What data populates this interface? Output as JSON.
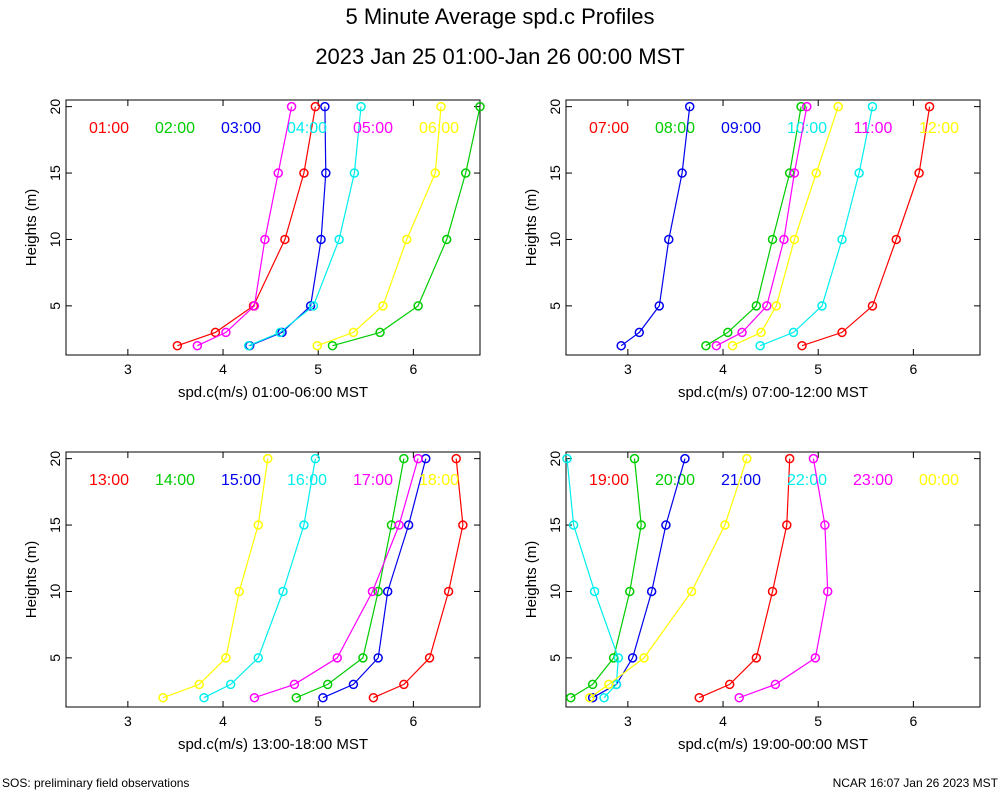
{
  "chart_data": {
    "type": "line",
    "title": "5 Minute Average spd.c Profiles",
    "subtitle": "2023 Jan 25 01:00-Jan 26 00:00 MST",
    "footer_left": "SOS: preliminary field observations",
    "footer_right": "NCAR 16:07 Jan 26 2023 MST",
    "ylabel": "Heights (m)",
    "heights": [
      2,
      3,
      5,
      10,
      15,
      20
    ],
    "xlim": [
      2.35,
      6.7
    ],
    "ylim": [
      1.3,
      20.5
    ],
    "xticks": [
      3,
      4,
      5,
      6
    ],
    "yticks": [
      5,
      10,
      15,
      20
    ],
    "panels": [
      {
        "xlabel": "spd.c(m/s) 01:00-06:00 MST",
        "series": [
          {
            "name": "01:00",
            "color": "#ff0000",
            "values": [
              3.52,
              3.92,
              4.32,
              4.65,
              4.85,
              4.97
            ]
          },
          {
            "name": "02:00",
            "color": "#00cc00",
            "values": [
              5.15,
              5.65,
              6.05,
              6.35,
              6.55,
              6.7
            ]
          },
          {
            "name": "03:00",
            "color": "#0000ee",
            "values": [
              4.28,
              4.62,
              4.92,
              5.03,
              5.08,
              5.07
            ]
          },
          {
            "name": "04:00",
            "color": "#00eeee",
            "values": [
              4.27,
              4.6,
              4.95,
              5.22,
              5.38,
              5.45
            ]
          },
          {
            "name": "05:00",
            "color": "#ff00ff",
            "values": [
              3.73,
              4.03,
              4.33,
              4.44,
              4.58,
              4.72
            ]
          },
          {
            "name": "06:00",
            "color": "#ffff00",
            "values": [
              4.99,
              5.37,
              5.68,
              5.93,
              6.23,
              6.29
            ]
          }
        ]
      },
      {
        "xlabel": "spd.c(m/s) 07:00-12:00 MST",
        "series": [
          {
            "name": "07:00",
            "color": "#ff0000",
            "values": [
              4.83,
              5.25,
              5.57,
              5.82,
              6.06,
              6.17
            ]
          },
          {
            "name": "08:00",
            "color": "#00cc00",
            "values": [
              3.82,
              4.05,
              4.35,
              4.52,
              4.7,
              4.82
            ]
          },
          {
            "name": "09:00",
            "color": "#0000ee",
            "values": [
              2.93,
              3.12,
              3.33,
              3.43,
              3.57,
              3.65
            ]
          },
          {
            "name": "10:00",
            "color": "#00eeee",
            "values": [
              4.39,
              4.74,
              5.04,
              5.25,
              5.43,
              5.57
            ]
          },
          {
            "name": "11:00",
            "color": "#ff00ff",
            "values": [
              3.93,
              4.2,
              4.46,
              4.64,
              4.75,
              4.88
            ]
          },
          {
            "name": "12:00",
            "color": "#ffff00",
            "values": [
              4.1,
              4.4,
              4.56,
              4.75,
              4.98,
              5.21
            ]
          }
        ]
      },
      {
        "xlabel": "spd.c(m/s) 13:00-18:00 MST",
        "series": [
          {
            "name": "13:00",
            "color": "#ff0000",
            "values": [
              5.58,
              5.9,
              6.17,
              6.37,
              6.52,
              6.45
            ]
          },
          {
            "name": "14:00",
            "color": "#00cc00",
            "values": [
              4.77,
              5.1,
              5.47,
              5.63,
              5.77,
              5.9
            ]
          },
          {
            "name": "15:00",
            "color": "#0000ee",
            "values": [
              5.05,
              5.37,
              5.63,
              5.73,
              5.95,
              6.13
            ]
          },
          {
            "name": "16:00",
            "color": "#00eeee",
            "values": [
              3.8,
              4.08,
              4.37,
              4.63,
              4.85,
              4.97
            ]
          },
          {
            "name": "17:00",
            "color": "#ff00ff",
            "values": [
              4.33,
              4.75,
              5.2,
              5.57,
              5.85,
              6.05
            ]
          },
          {
            "name": "18:00",
            "color": "#ffff00",
            "values": [
              3.37,
              3.75,
              4.03,
              4.17,
              4.37,
              4.47
            ]
          }
        ]
      },
      {
        "xlabel": "spd.c(m/s) 19:00-00:00 MST",
        "series": [
          {
            "name": "19:00",
            "color": "#ff0000",
            "values": [
              3.75,
              4.07,
              4.35,
              4.52,
              4.67,
              4.7
            ]
          },
          {
            "name": "20:00",
            "color": "#00cc00",
            "values": [
              2.4,
              2.63,
              2.85,
              3.02,
              3.14,
              3.07
            ]
          },
          {
            "name": "21:00",
            "color": "#0000ee",
            "values": [
              2.63,
              2.88,
              3.05,
              3.25,
              3.4,
              3.6
            ]
          },
          {
            "name": "22:00",
            "color": "#00eeee",
            "values": [
              2.75,
              2.88,
              2.9,
              2.65,
              2.43,
              2.36
            ]
          },
          {
            "name": "23:00",
            "color": "#ff00ff",
            "values": [
              4.17,
              4.55,
              4.97,
              5.1,
              5.07,
              4.95
            ]
          },
          {
            "name": "00:00",
            "color": "#ffff00",
            "values": [
              2.6,
              2.8,
              3.17,
              3.67,
              4.02,
              4.25
            ]
          }
        ]
      }
    ]
  }
}
